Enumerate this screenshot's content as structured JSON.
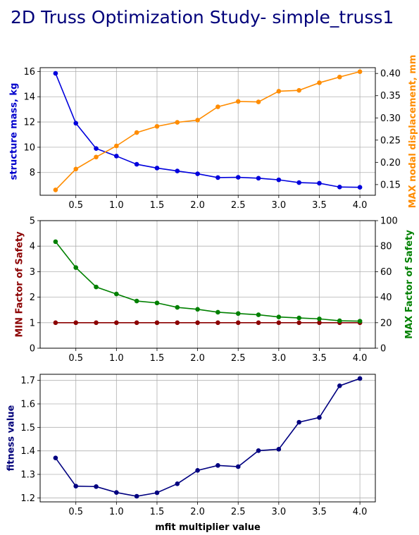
{
  "figure": {
    "title": "2D Truss Optimization Study- simple_truss1"
  },
  "chart_data": [
    {
      "type": "line",
      "x": [
        0.25,
        0.5,
        0.75,
        1.0,
        1.25,
        1.5,
        1.75,
        2.0,
        2.25,
        2.5,
        2.75,
        3.0,
        3.25,
        3.5,
        3.75,
        4.0
      ],
      "xticks": [
        "0.5",
        "1.0",
        "1.5",
        "2.0",
        "2.5",
        "3.0",
        "3.5",
        "4.0"
      ],
      "xlim": [
        0.06,
        4.19
      ],
      "grid": true,
      "left_axis": {
        "label": "structure mass, kg",
        "color": "#0000cc",
        "ylim": [
          6.2,
          16.3
        ],
        "ticks": [
          "8",
          "10",
          "12",
          "14",
          "16"
        ],
        "series": [
          {
            "color": "#0000dd",
            "values": [
              15.85,
              11.9,
              9.9,
              9.3,
              8.65,
              8.35,
              8.12,
              7.9,
              7.6,
              7.62,
              7.55,
              7.42,
              7.2,
              7.15,
              6.85,
              6.83
            ]
          }
        ]
      },
      "right_axis": {
        "label": "MAX nodal displacement, mm",
        "color": "#ff8c00",
        "ylim": [
          0.126,
          0.413
        ],
        "ticks": [
          "0.15",
          "0.20",
          "0.25",
          "0.30",
          "0.35",
          "0.40"
        ],
        "series": [
          {
            "color": "#ff8c00",
            "values": [
              0.138,
              0.185,
              0.212,
              0.237,
              0.267,
              0.281,
              0.29,
              0.295,
              0.325,
              0.337,
              0.336,
              0.36,
              0.362,
              0.379,
              0.392,
              0.404
            ]
          }
        ]
      }
    },
    {
      "type": "line",
      "x": [
        0.25,
        0.5,
        0.75,
        1.0,
        1.25,
        1.5,
        1.75,
        2.0,
        2.25,
        2.5,
        2.75,
        3.0,
        3.25,
        3.5,
        3.75,
        4.0
      ],
      "xticks": [
        "0.5",
        "1.0",
        "1.5",
        "2.0",
        "2.5",
        "3.0",
        "3.5",
        "4.0"
      ],
      "xlim": [
        0.06,
        4.19
      ],
      "grid": true,
      "left_axis": {
        "label": "MIN Factor of Safety",
        "color": "#8b0000",
        "ylim": [
          0,
          5
        ],
        "ticks": [
          "0",
          "1",
          "2",
          "3",
          "4",
          "5"
        ],
        "series": [
          {
            "color": "#8b0000",
            "values": [
              1.0,
              1.0,
              1.0,
              1.0,
              1.0,
              1.0,
              1.0,
              1.0,
              1.0,
              1.0,
              1.0,
              1.0,
              1.0,
              1.0,
              1.0,
              1.0
            ]
          }
        ]
      },
      "right_axis": {
        "label": "MAX Factor of Safety",
        "color": "#008000",
        "ylim": [
          0,
          100
        ],
        "ticks": [
          "0",
          "20",
          "40",
          "60",
          "80",
          "100"
        ],
        "series": [
          {
            "color": "#008000",
            "values": [
              83.5,
              63.2,
              48.0,
              42.5,
              37.0,
              35.5,
              32.0,
              30.5,
              28.2,
              27.2,
              26.2,
              24.5,
              23.7,
              23.0,
              21.5,
              21.2
            ]
          }
        ]
      }
    },
    {
      "type": "line",
      "x": [
        0.25,
        0.5,
        0.75,
        1.0,
        1.25,
        1.5,
        1.75,
        2.0,
        2.25,
        2.5,
        2.75,
        3.0,
        3.25,
        3.5,
        3.75,
        4.0
      ],
      "xticks": [
        "0.5",
        "1.0",
        "1.5",
        "2.0",
        "2.5",
        "3.0",
        "3.5",
        "4.0"
      ],
      "xlim": [
        0.06,
        4.19
      ],
      "xlabel": "mfit multiplier value",
      "grid": true,
      "left_axis": {
        "label": "fitness value",
        "color": "#00007a",
        "ylim": [
          1.183,
          1.726
        ],
        "ticks": [
          "1.2",
          "1.3",
          "1.4",
          "1.5",
          "1.6",
          "1.7"
        ],
        "series": [
          {
            "color": "#000080",
            "values": [
              1.37,
              1.25,
              1.248,
              1.223,
              1.207,
              1.222,
              1.26,
              1.317,
              1.338,
              1.333,
              1.401,
              1.407,
              1.522,
              1.542,
              1.677,
              1.708
            ]
          }
        ]
      }
    }
  ]
}
